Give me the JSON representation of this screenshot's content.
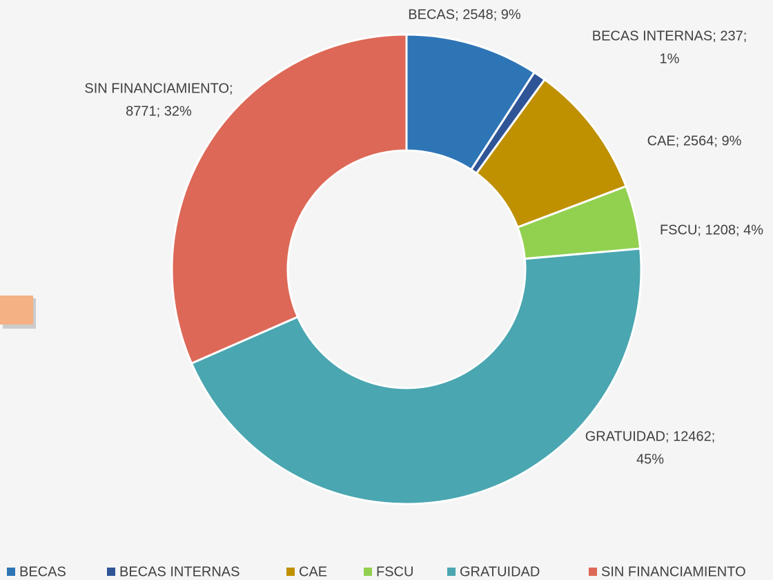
{
  "chart_data": {
    "type": "donut",
    "categories": [
      "BECAS",
      "BECAS INTERNAS",
      "CAE",
      "FSCU",
      "GRATUIDAD",
      "SIN FINANCIAMIENTO"
    ],
    "values": [
      2548,
      237,
      2564,
      1208,
      12462,
      8771
    ],
    "value_labels": [
      [
        "BECAS; 2548; 9%"
      ],
      [
        "BECAS INTERNAS; 237;",
        "1%"
      ],
      [
        "CAE; 2564; 9%"
      ],
      [
        "FSCU; 1208; 4%"
      ],
      [
        "GRATUIDAD; 12462;",
        "45%"
      ],
      [
        "SIN FINANCIAMIENTO;",
        "8771; 32%"
      ]
    ],
    "colors": [
      "#2e75b6",
      "#2f5597",
      "#bf9000",
      "#92d050",
      "#4aa6b0",
      "#dd6857"
    ],
    "legend": "bottom"
  }
}
